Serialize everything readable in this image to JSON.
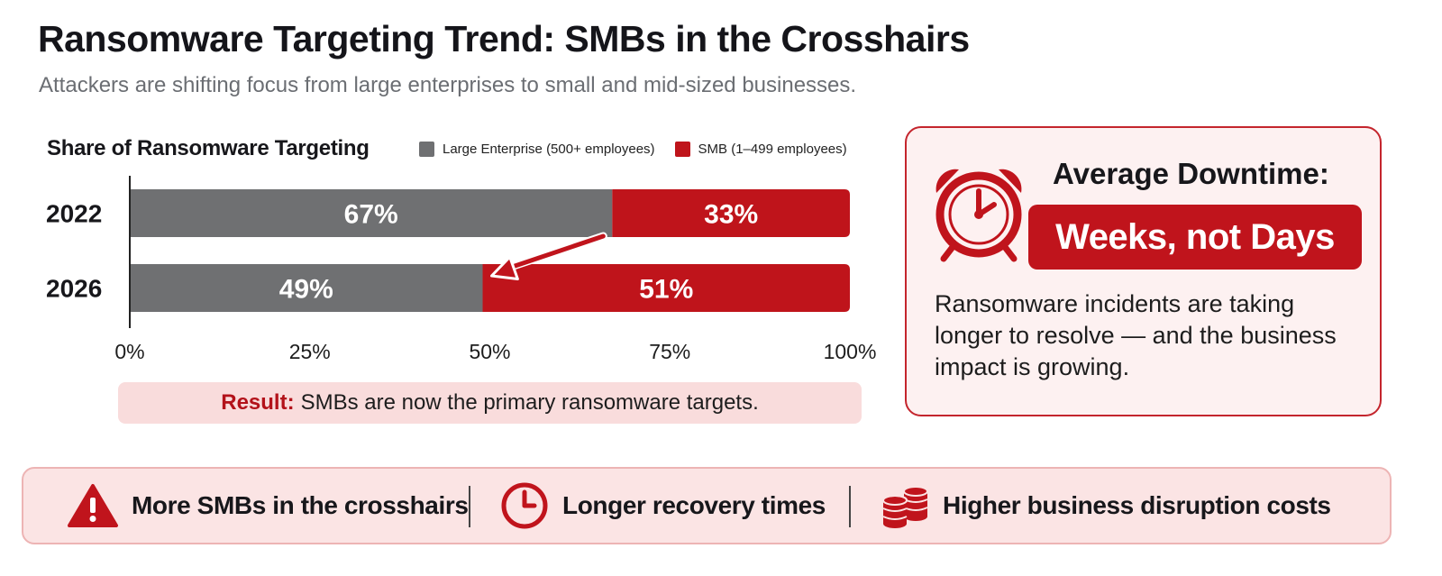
{
  "title": "Ransomware Targeting Trend: SMBs in the Crosshairs",
  "subtitle": "Attackers are shifting focus from large enterprises to small and mid-sized businesses.",
  "colors": {
    "enterprise": "#6f7072",
    "smb": "#bf141b",
    "accent_red": "#c0141c",
    "card_border": "#c4252d",
    "light_red": "#f9dcdc"
  },
  "chart_data": {
    "type": "bar",
    "stacked": true,
    "orientation": "horizontal",
    "title": "Share of Ransomware Targeting",
    "categories": [
      "2022",
      "2026"
    ],
    "series": [
      {
        "name": "Large Enterprise (500+ employees)",
        "values": [
          67,
          49
        ],
        "labels": [
          "67%",
          "49%"
        ]
      },
      {
        "name": "SMB (1–499 employees)",
        "values": [
          33,
          51
        ],
        "labels": [
          "33%",
          "51%"
        ]
      }
    ],
    "xlim": [
      0,
      100
    ],
    "xticks": [
      0,
      25,
      50,
      75,
      100
    ],
    "xtick_labels": [
      "0%",
      "25%",
      "50%",
      "75%",
      "100%"
    ],
    "legend_position": "top"
  },
  "result": {
    "label": "Result:",
    "text": "SMBs are now the primary ransomware targets."
  },
  "downtime_card": {
    "icon": "alarm-clock-icon",
    "heading": "Average Downtime:",
    "highlight": "Weeks, not Days",
    "description": "Ransomware incidents are taking longer to resolve — and the business impact is growing."
  },
  "impacts": [
    {
      "icon": "warning-icon",
      "label": "More SMBs in the crosshairs"
    },
    {
      "icon": "clock-icon",
      "label": "Longer recovery times"
    },
    {
      "icon": "coin-stack-icon",
      "label": "Higher business disruption costs"
    }
  ]
}
